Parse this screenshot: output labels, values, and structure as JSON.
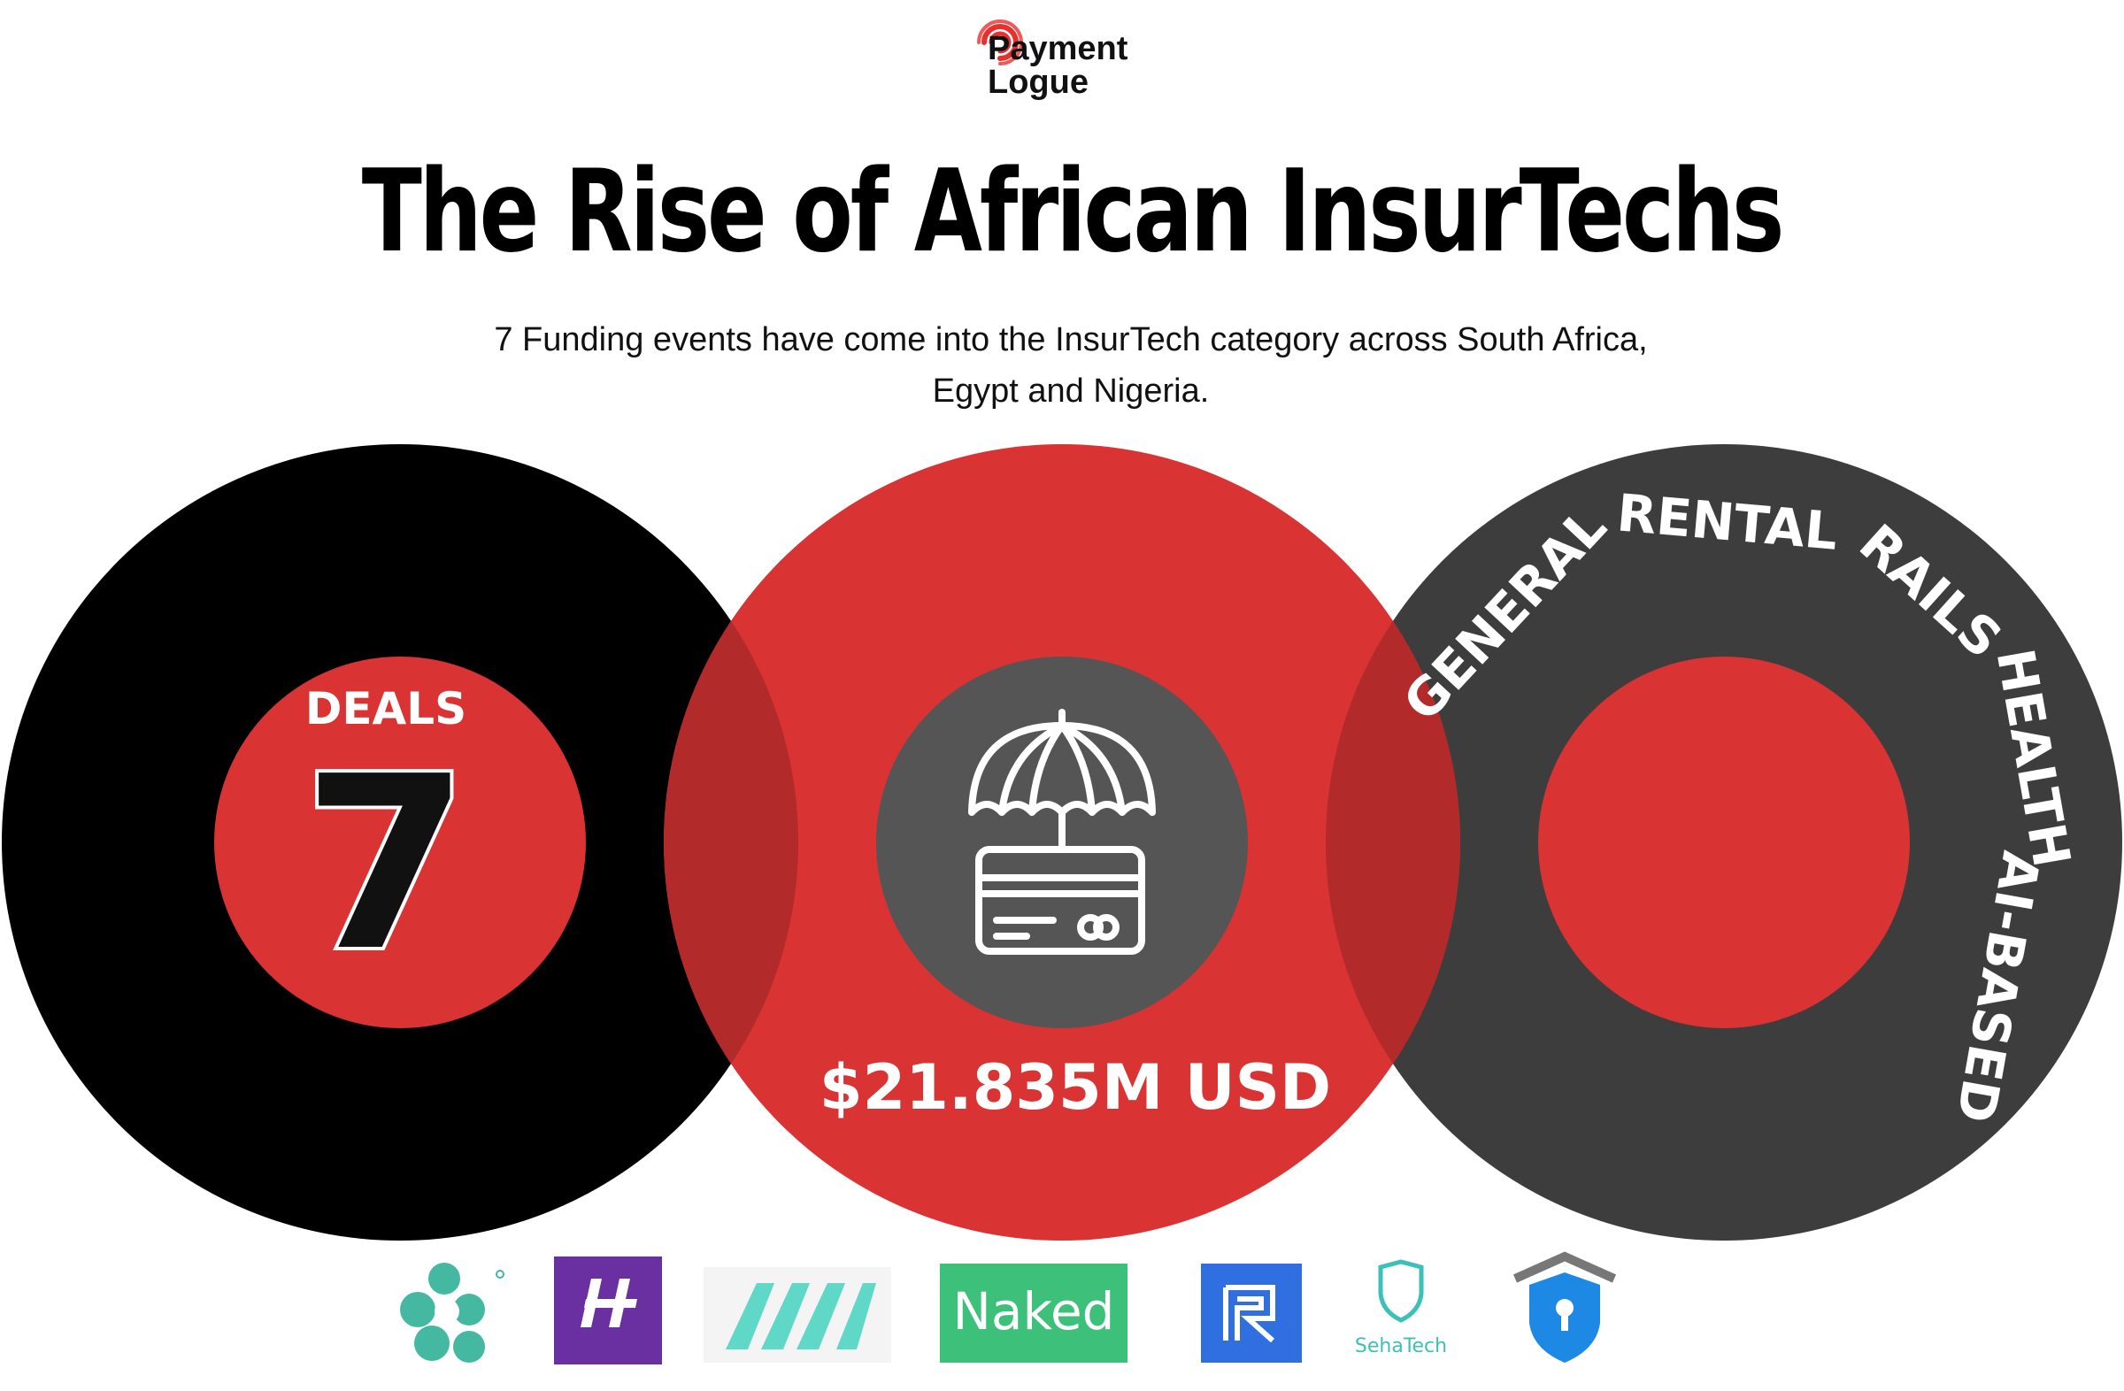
{
  "brand": {
    "name_line1": "Payment",
    "name_line2": "Logue"
  },
  "title": "The Rise of African InsurTechs",
  "subtitle": {
    "line1": "7 Funding events have come into the InsurTech category across South Africa,",
    "line2": "Egypt and Nigeria."
  },
  "deals": {
    "label": "DEALS",
    "count": "7"
  },
  "funding": {
    "amount": "$21.835M USD",
    "icon": "umbrella-card-icon"
  },
  "categories": [
    "GENERAL",
    "RENTAL",
    "RAILS",
    "HEALTH",
    "AI-BASED"
  ],
  "company_logos": [
    {
      "icon": "teal-flower-logo"
    },
    {
      "icon": "purple-h-logo"
    },
    {
      "icon": "teal-am-logo"
    },
    {
      "name": "Naked",
      "icon": "naked-logo"
    },
    {
      "icon": "blue-r-logo"
    },
    {
      "name": "SehaTech",
      "icon": "sehatech-shield-logo"
    },
    {
      "icon": "shield-house-logo"
    }
  ],
  "colors": {
    "red": "#d93333",
    "black": "#000000",
    "dark_gray": "#3d3d3d",
    "mid_gray": "#555555",
    "overlap_red": "#b22a2a"
  }
}
